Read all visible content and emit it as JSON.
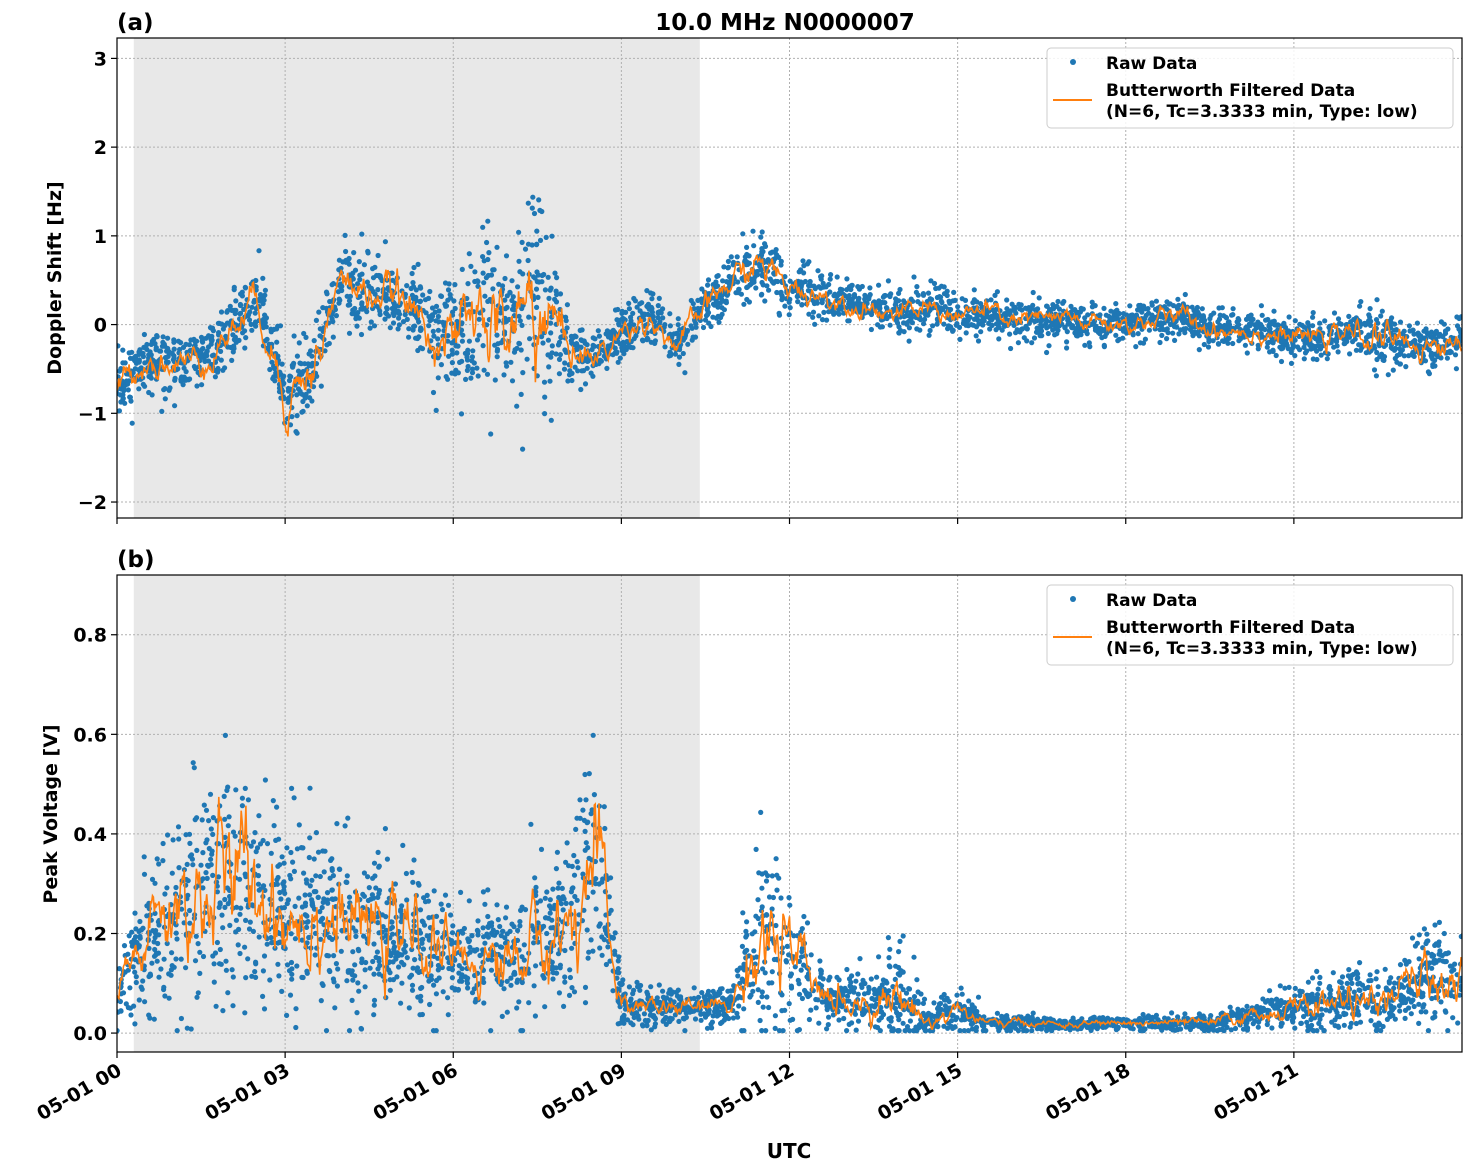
{
  "chart_data": [
    {
      "type": "scatter",
      "panel_label": "(a)",
      "title": "10.0 MHz N0000007",
      "xlabel": "",
      "ylabel": "Doppler Shift [Hz]",
      "xlim_hours": [
        0,
        24
      ],
      "ylim": [
        -2.18,
        3.23
      ],
      "yticks": [
        -2,
        -1,
        0,
        1,
        2,
        3
      ],
      "ytick_labels": [
        "−2",
        "−1",
        "0",
        "1",
        "2",
        "3"
      ],
      "grid": true,
      "legend_placement": "top-right",
      "shaded_interval_hours": [
        0.3,
        10.4
      ],
      "shade_color": "#e8e8e8",
      "x_hours": [
        0,
        0.5,
        1,
        1.5,
        2,
        2.5,
        3,
        3.5,
        4,
        4.5,
        5,
        5.5,
        6,
        6.5,
        7,
        7.5,
        8,
        8.5,
        9,
        9.5,
        10,
        10.5,
        11,
        11.5,
        12,
        12.5,
        13,
        13.5,
        14,
        14.5,
        15,
        15.5,
        16,
        16.5,
        17,
        17.5,
        18,
        18.5,
        19,
        19.5,
        20,
        20.5,
        21,
        21.5,
        22,
        22.5,
        23,
        23.5,
        24
      ],
      "series": [
        {
          "name": "Butterworth Filtered Data\n(N=6, Tc=3.3333 min, Type: low)",
          "color": "#ff7f0e",
          "kind": "line",
          "values": [
            -0.7,
            -0.4,
            -0.45,
            -0.4,
            -0.1,
            0.3,
            -0.8,
            -0.5,
            0.5,
            0.35,
            0.3,
            0.0,
            -0.2,
            0.1,
            -0.1,
            0.3,
            -0.2,
            -0.4,
            -0.1,
            0.1,
            -0.25,
            0.2,
            0.5,
            0.7,
            0.4,
            0.35,
            0.25,
            0.2,
            0.1,
            0.2,
            0.1,
            0.15,
            0.05,
            0.05,
            0.05,
            0.0,
            0.0,
            0.05,
            0.1,
            -0.05,
            -0.05,
            -0.1,
            -0.15,
            -0.15,
            -0.1,
            -0.15,
            -0.2,
            -0.25,
            -0.2
          ]
        },
        {
          "name": "Raw Data",
          "color": "#1f77b4",
          "kind": "points",
          "spread": [
            0.3,
            0.3,
            0.3,
            0.3,
            0.35,
            0.35,
            0.5,
            0.5,
            0.4,
            0.35,
            0.45,
            0.4,
            0.6,
            0.8,
            1.0,
            1.3,
            0.4,
            0.25,
            0.25,
            0.25,
            0.25,
            0.25,
            0.3,
            0.35,
            0.25,
            0.25,
            0.2,
            0.2,
            0.2,
            0.2,
            0.2,
            0.2,
            0.2,
            0.2,
            0.2,
            0.2,
            0.2,
            0.2,
            0.2,
            0.2,
            0.2,
            0.2,
            0.2,
            0.2,
            0.2,
            0.3,
            0.25,
            0.25,
            0.25
          ]
        }
      ]
    },
    {
      "type": "scatter",
      "panel_label": "(b)",
      "title": "",
      "xlabel": "UTC",
      "ylabel": "Peak Voltage [V]",
      "xlim_hours": [
        0,
        24
      ],
      "ylim": [
        -0.038,
        0.92
      ],
      "yticks": [
        0,
        0.2,
        0.4,
        0.6,
        0.8
      ],
      "ytick_labels": [
        "0.0",
        "0.2",
        "0.4",
        "0.6",
        "0.8"
      ],
      "xticks_hours": [
        0,
        3,
        6,
        9,
        12,
        15,
        18,
        21
      ],
      "xtick_labels": [
        "05-01 00",
        "05-01 03",
        "05-01 06",
        "05-01 09",
        "05-01 12",
        "05-01 15",
        "05-01 18",
        "05-01 21"
      ],
      "grid": true,
      "legend_placement": "top-right",
      "shaded_interval_hours": [
        0.3,
        10.4
      ],
      "shade_color": "#e8e8e8",
      "x_hours": [
        0,
        0.5,
        1,
        1.5,
        2,
        2.5,
        3,
        3.5,
        4,
        4.5,
        5,
        5.5,
        6,
        6.5,
        7,
        7.5,
        8,
        8.5,
        9,
        9.5,
        10,
        10.5,
        11,
        11.5,
        12,
        12.5,
        13,
        13.5,
        14,
        14.5,
        15,
        15.5,
        16,
        16.5,
        17,
        17.5,
        18,
        18.5,
        19,
        19.5,
        20,
        20.5,
        21,
        21.5,
        22,
        22.5,
        23,
        23.5,
        24
      ],
      "series": [
        {
          "name": "Butterworth Filtered Data\n(N=6, Tc=3.3333 min, Type: low)",
          "color": "#ff7f0e",
          "kind": "line",
          "values": [
            0.08,
            0.18,
            0.25,
            0.28,
            0.3,
            0.3,
            0.25,
            0.25,
            0.22,
            0.2,
            0.2,
            0.18,
            0.15,
            0.15,
            0.15,
            0.18,
            0.2,
            0.35,
            0.06,
            0.05,
            0.05,
            0.05,
            0.06,
            0.2,
            0.15,
            0.08,
            0.06,
            0.07,
            0.07,
            0.02,
            0.05,
            0.02,
            0.02,
            0.02,
            0.015,
            0.02,
            0.02,
            0.02,
            0.02,
            0.02,
            0.03,
            0.04,
            0.05,
            0.06,
            0.07,
            0.05,
            0.09,
            0.12,
            0.1
          ]
        },
        {
          "name": "Raw Data",
          "color": "#1f77b4",
          "kind": "points",
          "spread": [
            0.06,
            0.12,
            0.18,
            0.22,
            0.25,
            0.22,
            0.2,
            0.18,
            0.15,
            0.14,
            0.14,
            0.12,
            0.1,
            0.1,
            0.12,
            0.14,
            0.15,
            0.25,
            0.04,
            0.04,
            0.03,
            0.03,
            0.04,
            0.2,
            0.15,
            0.06,
            0.05,
            0.06,
            0.08,
            0.02,
            0.04,
            0.015,
            0.015,
            0.012,
            0.01,
            0.012,
            0.012,
            0.015,
            0.015,
            0.015,
            0.02,
            0.03,
            0.04,
            0.05,
            0.06,
            0.05,
            0.07,
            0.1,
            0.08
          ]
        }
      ]
    }
  ],
  "legend": {
    "raw_label": "Raw Data",
    "filtered_line1": "Butterworth Filtered Data",
    "filtered_line2": "(N=6, Tc=3.3333 min, Type: low)"
  }
}
